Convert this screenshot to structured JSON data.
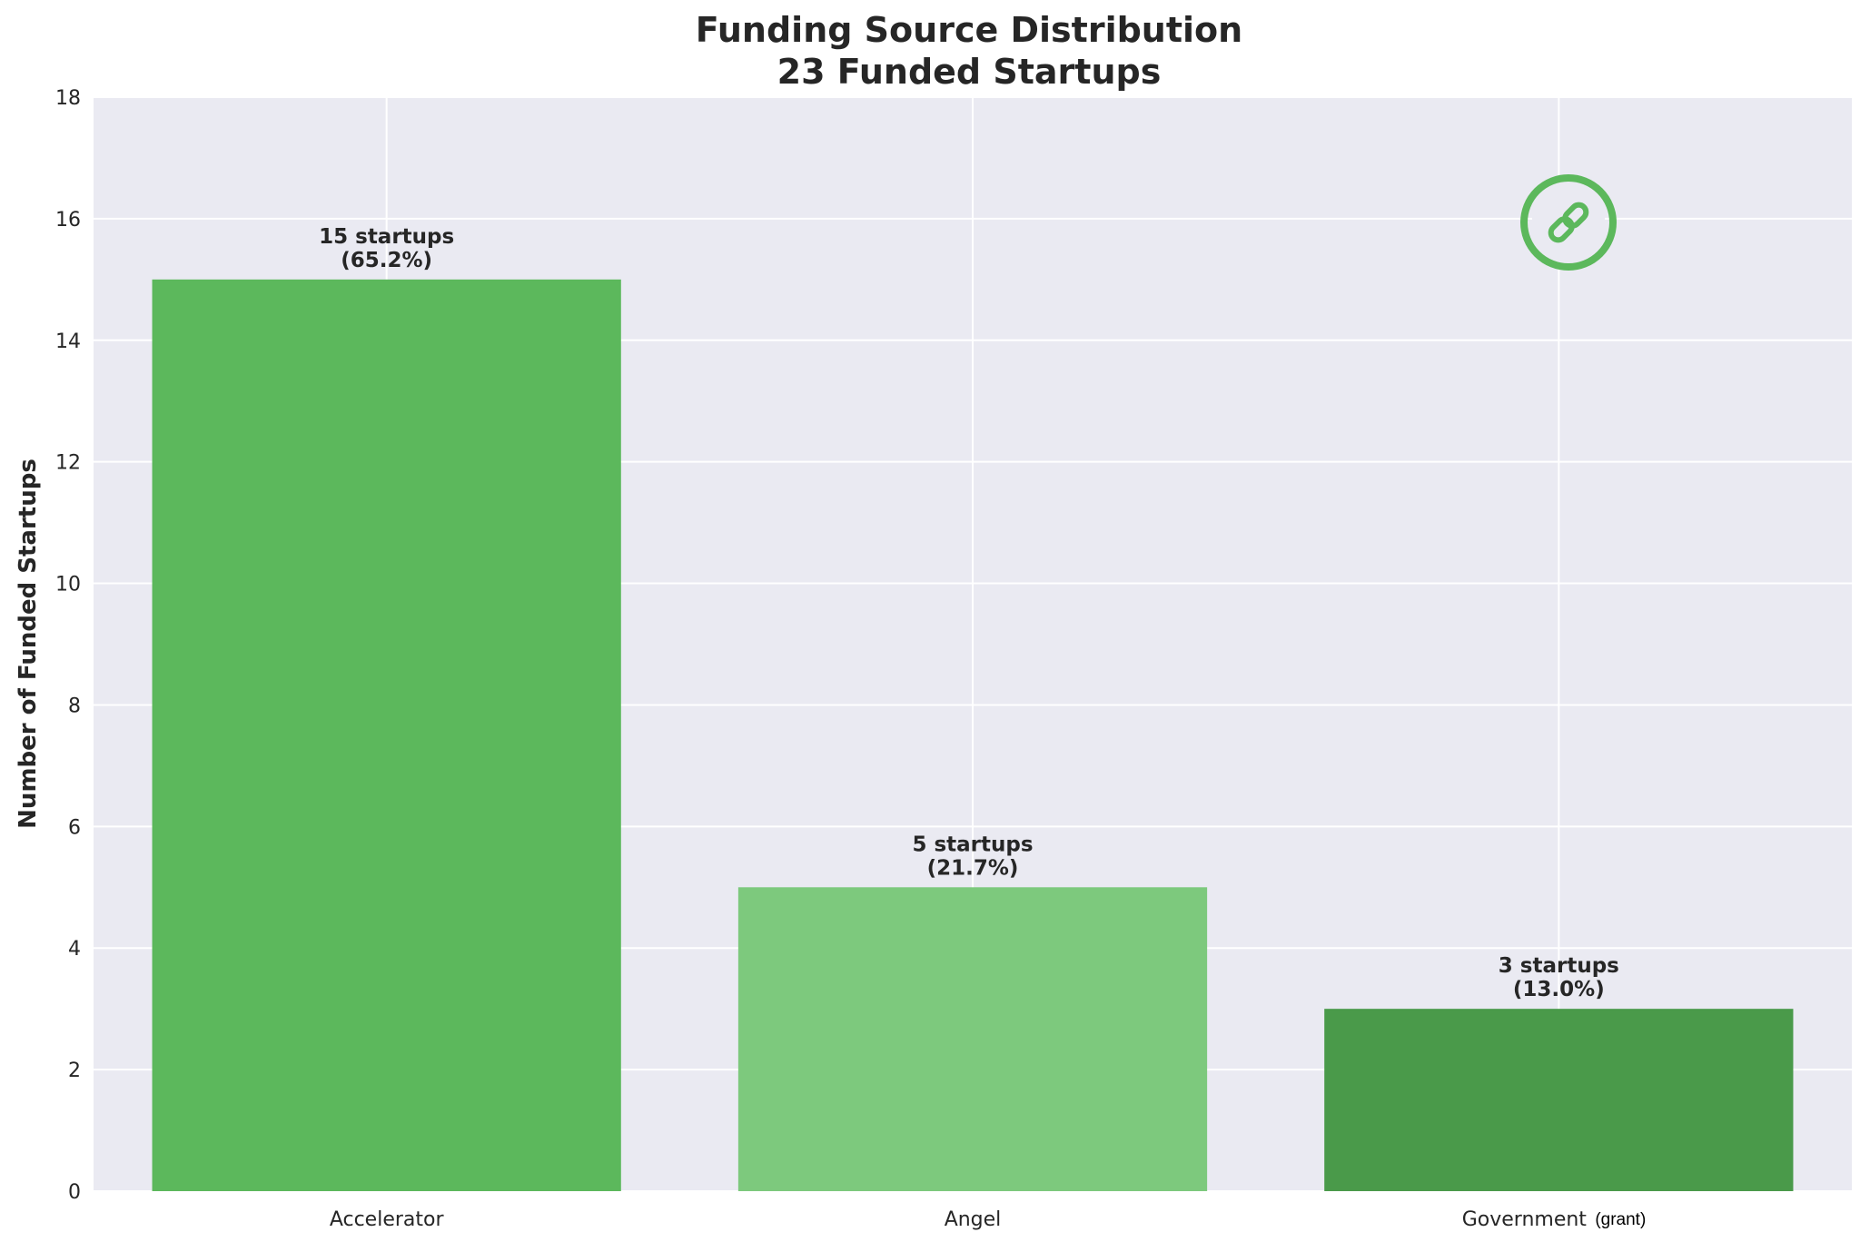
{
  "chart_data": {
    "type": "bar",
    "title": "Funding Source Distribution",
    "subtitle": "23 Funded Startups",
    "xlabel": "",
    "ylabel": "Number of Funded Startups",
    "ylim": [
      0,
      18
    ],
    "yticks": [
      0,
      2,
      4,
      6,
      8,
      10,
      12,
      14,
      16,
      18
    ],
    "grid": true,
    "categories": [
      "Accelerator",
      "Angel",
      "Government"
    ],
    "category_notes": [
      "",
      "",
      "(grant)"
    ],
    "values": [
      15,
      5,
      3
    ],
    "data_labels": [
      [
        "15 startups",
        "(65.2%)"
      ],
      [
        "5 startups",
        "(21.7%)"
      ],
      [
        "3 startups",
        "(13.0%)"
      ]
    ],
    "colors": [
      "#5cb85c",
      "#7dc97d",
      "#4a9a4a"
    ],
    "background": "#eaeaf2",
    "icon": {
      "name": "link-icon",
      "color": "#5cb85c"
    }
  }
}
